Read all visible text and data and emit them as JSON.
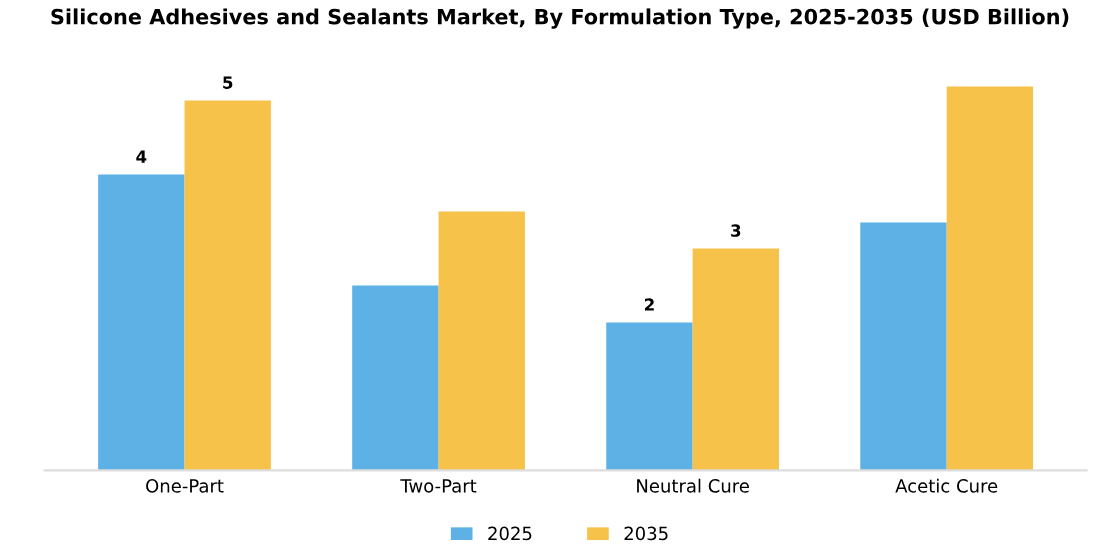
{
  "chart_data": {
    "type": "bar",
    "title": "Silicone Adhesives and Sealants Market, By Formulation Type, 2025-2035 (USD Billion)",
    "categories": [
      "One-Part",
      "Two-Part",
      "Neutral Cure",
      "Acetic Cure"
    ],
    "series": [
      {
        "name": "2025",
        "color": "#5db1e4",
        "values": [
          4,
          2.5,
          2,
          3.35
        ],
        "value_labels": [
          "4",
          null,
          "2",
          null
        ]
      },
      {
        "name": "2035",
        "color": "#f7c24a",
        "values": [
          5,
          3.5,
          3,
          5.19
        ],
        "value_labels": [
          "5",
          null,
          "3",
          null
        ]
      }
    ],
    "legend": "bottom",
    "tick_labels": "x"
  }
}
